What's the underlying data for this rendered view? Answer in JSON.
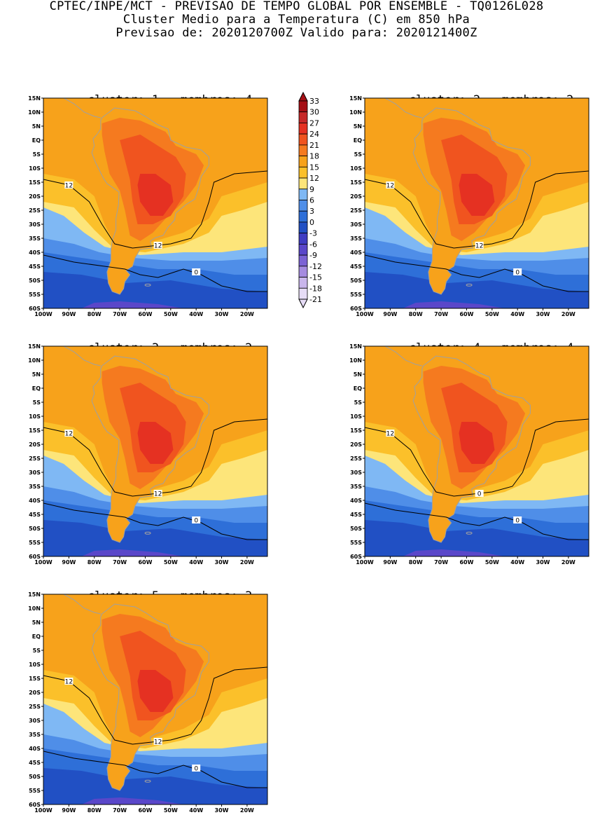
{
  "header": {
    "line1": "CPTEC/INPE/MCT - PREVISAO DE TEMPO GLOBAL POR ENSEMBLE - TQ0126L028",
    "line2": "Cluster Medio para a Temperatura (C) em 850 hPa",
    "line3": "Previsao de: 2020120700Z   Valido para: 2020121400Z"
  },
  "colors": {
    "levels_desc": [
      "#a50f15",
      "#c62828",
      "#e53122",
      "#f0541f",
      "#f57a1f",
      "#f7a21b",
      "#fbc02a",
      "#fde57a",
      "#7fb8f4",
      "#4f8ee8",
      "#2e6fd8",
      "#2150c4",
      "#3f3dc2",
      "#5a47c9",
      "#7b62d4",
      "#a58be0",
      "#c9b6ec",
      "#e6dcf6"
    ],
    "contour": "#000000",
    "coast": "#a0a0a0"
  },
  "chart_data": {
    "type": "heatmap",
    "title": "Cluster Medio para a Temperatura (C) em 850 hPa",
    "colorbar": {
      "labels": [
        "33",
        "30",
        "27",
        "24",
        "21",
        "18",
        "15",
        "12",
        "9",
        "6",
        "3",
        "0",
        "-3",
        "-6",
        "-9",
        "-12",
        "-15",
        "-18",
        "-21"
      ],
      "values": [
        33,
        30,
        27,
        24,
        21,
        18,
        15,
        12,
        9,
        6,
        3,
        0,
        -3,
        -6,
        -9,
        -12,
        -15,
        -18,
        -21
      ]
    },
    "x_ticks": [
      "100W",
      "90W",
      "80W",
      "70W",
      "60W",
      "50W",
      "40W",
      "30W",
      "20W"
    ],
    "y_ticks": [
      "15N",
      "10N",
      "5N",
      "EQ",
      "5S",
      "10S",
      "15S",
      "20S",
      "25S",
      "30S",
      "35S",
      "40S",
      "45S",
      "50S",
      "55S",
      "60S"
    ],
    "x_range_deg": [
      -100,
      -12
    ],
    "y_range_deg": [
      15,
      -60
    ],
    "contour_levels": [
      12,
      0
    ],
    "panels": [
      {
        "cluster": "1",
        "membros": "4",
        "contour_labels": [
          "12",
          "12",
          "0"
        ]
      },
      {
        "cluster": "2",
        "membros": "2",
        "contour_labels": [
          "12",
          "12",
          "0"
        ]
      },
      {
        "cluster": "3",
        "membros": "2",
        "contour_labels": [
          "12",
          "12",
          "0"
        ]
      },
      {
        "cluster": "4",
        "membros": "4",
        "contour_labels": [
          "12",
          "0",
          "0"
        ]
      },
      {
        "cluster": "5",
        "membros": "3",
        "contour_labels": [
          "12",
          "12",
          "0"
        ]
      }
    ],
    "panel_title_template": {
      "cluster_prefix": "cluster:",
      "membros_prefix": "membros:"
    }
  }
}
